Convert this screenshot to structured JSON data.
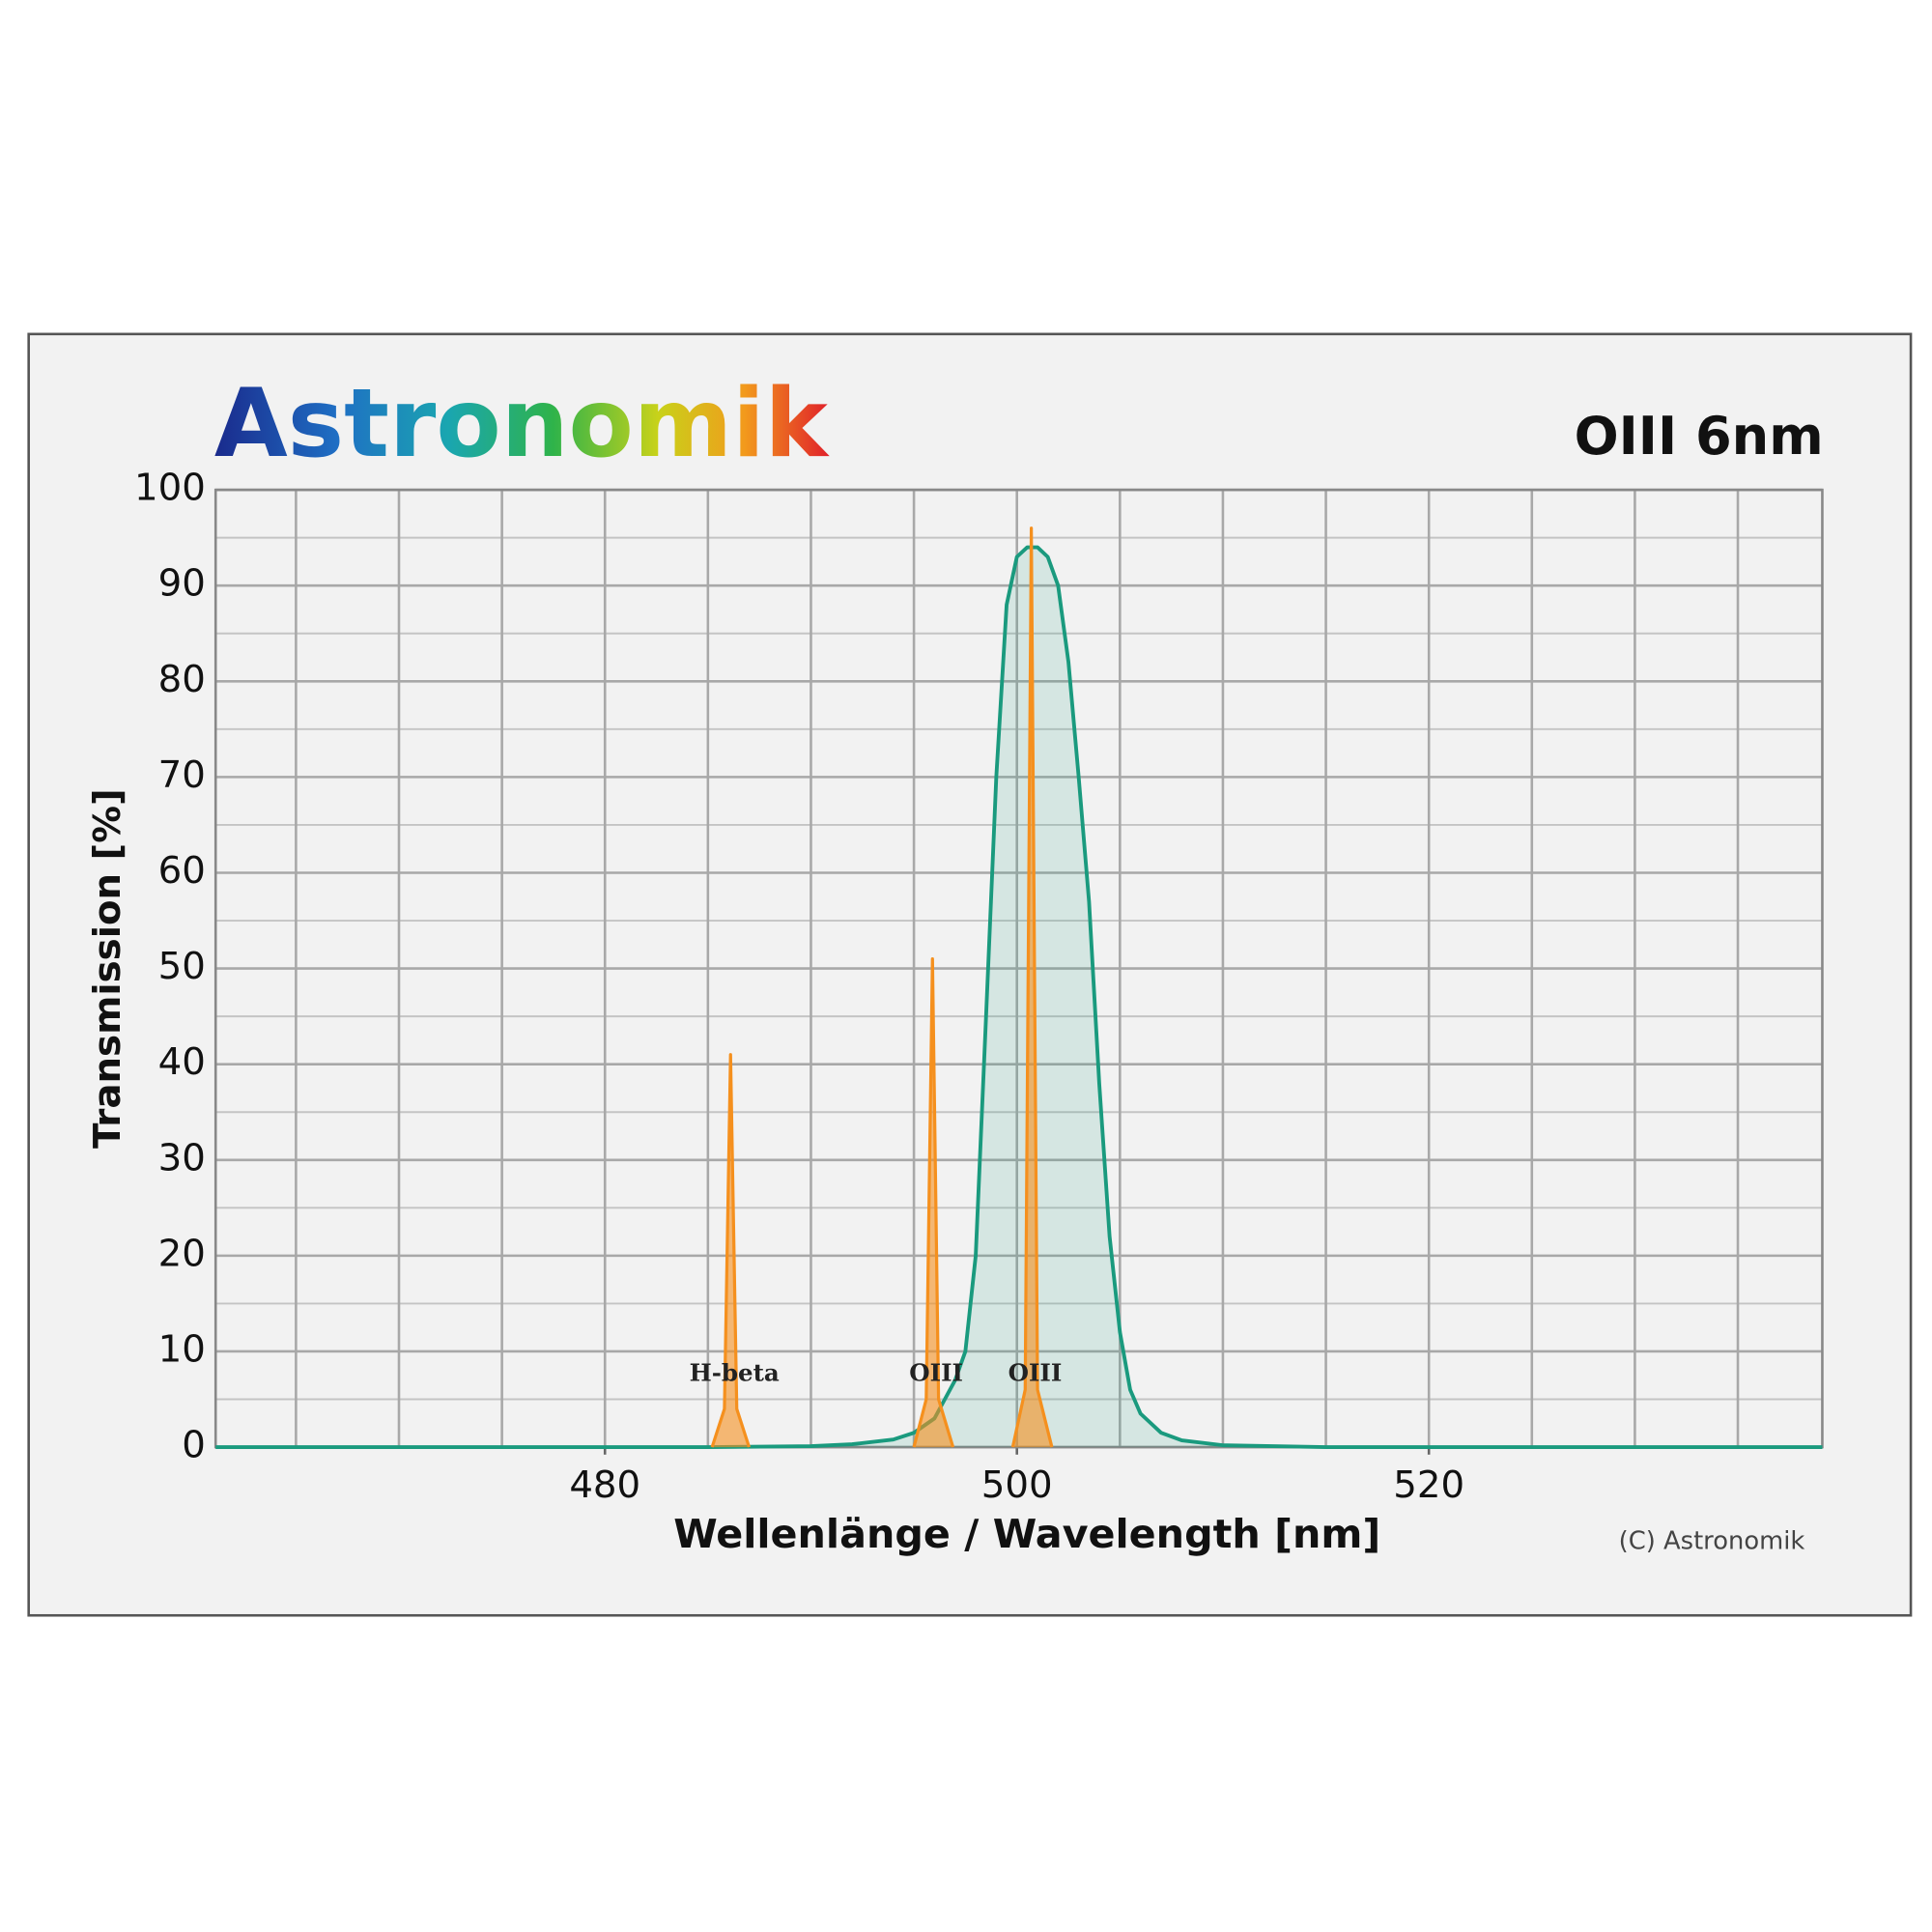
{
  "chart_data": {
    "type": "line",
    "brand": "Astronomik",
    "title": "OIII 6nm",
    "xlabel": "Wellenlänge / Wavelength [nm]",
    "ylabel": "Transmission [%]",
    "credit": "(C) Astronomik",
    "xlim": [
      461.1,
      539.1
    ],
    "ylim": [
      0,
      100
    ],
    "xticks": [
      480,
      500,
      520
    ],
    "xgrid": [
      465,
      470,
      475,
      480,
      485,
      490,
      495,
      500,
      505,
      510,
      515,
      520,
      525,
      530,
      535
    ],
    "yticks": [
      0,
      10,
      20,
      30,
      40,
      50,
      60,
      70,
      80,
      90,
      100
    ],
    "ygrid": [
      5,
      15,
      25,
      35,
      45,
      55,
      65,
      75,
      85,
      95
    ],
    "grid": true,
    "series": [
      {
        "color": "#1a9a7e",
        "fill": true,
        "x": [
          461.1,
          485,
          490,
          492,
          494,
          495,
          496,
          497,
          497.5,
          498,
          498.5,
          499,
          499.5,
          500,
          500.5,
          501,
          501.5,
          502,
          502.5,
          503,
          503.5,
          504,
          504.5,
          505,
          505.5,
          506,
          507,
          508,
          510,
          515,
          539.1
        ],
        "values": [
          0,
          0,
          0.1,
          0.3,
          0.8,
          1.5,
          3,
          7,
          10,
          20,
          45,
          70,
          88,
          93,
          94,
          94,
          93,
          90,
          82,
          70,
          57,
          38,
          22,
          12,
          6,
          3.5,
          1.5,
          0.7,
          0.2,
          0,
          0
        ]
      },
      {
        "color": "#f5901e",
        "fill": true,
        "label": "H-beta",
        "x": [
          485.2,
          485.8,
          486.1,
          486.4,
          487.0
        ],
        "values": [
          0,
          4,
          41,
          4,
          0
        ]
      },
      {
        "color": "#f5901e",
        "fill": true,
        "label": "OIII",
        "x": [
          495.0,
          495.6,
          495.9,
          496.2,
          496.9
        ],
        "values": [
          0,
          5,
          51,
          5,
          0
        ]
      },
      {
        "color": "#f5901e",
        "fill": true,
        "label": "OIII",
        "x": [
          499.8,
          500.4,
          500.7,
          501.0,
          501.7
        ],
        "values": [
          0,
          6,
          96,
          6,
          0
        ]
      }
    ]
  }
}
